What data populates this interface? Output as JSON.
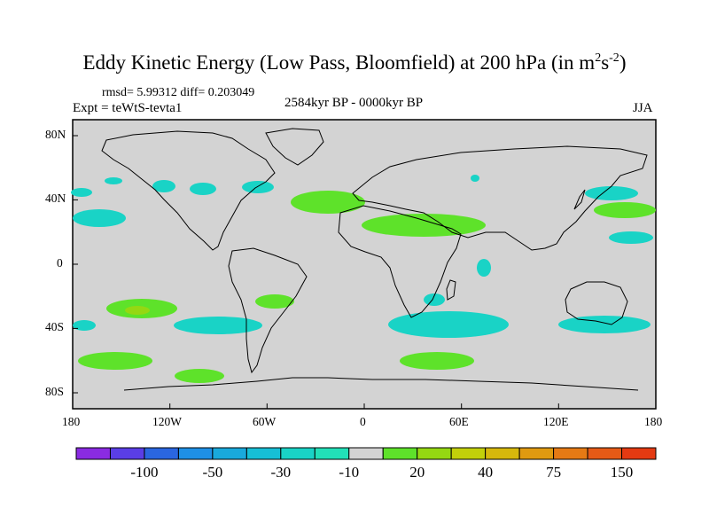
{
  "header": {
    "title_main": "Eddy Kinetic Energy (Low Pass, Bloomfield) at 200 hPa (in m",
    "units_exp1": "2",
    "units_s": "s",
    "units_exp2": "-2",
    "units_close": ")",
    "stats": "rmsd= 5.99312 diff= 0.203049",
    "experiment": "Expt = teWtS-tevta1",
    "period": "2584kyr BP - 0000kyr BP",
    "season": "JJA"
  },
  "map": {
    "lon_range": [
      -180,
      180
    ],
    "lat_range": [
      -90,
      90
    ],
    "background_color": "#d3d3d3",
    "lat_labels": [
      "80N",
      "40N",
      "0",
      "40S",
      "80S"
    ],
    "lon_labels": [
      "180",
      "120W",
      "60W",
      "0",
      "60E",
      "120E",
      "180"
    ]
  },
  "colorbar": {
    "colors": [
      "#8a2be2",
      "#5a3ee6",
      "#2a66e0",
      "#1e90e6",
      "#19a9dc",
      "#16bfd6",
      "#19d3c6",
      "#22e0b8",
      "#d3d3d3",
      "#5ee22a",
      "#95d812",
      "#c2d00a",
      "#d6b80c",
      "#e09a10",
      "#e67a14",
      "#e65a16",
      "#e43a12"
    ],
    "labels": [
      "-100",
      "-50",
      "-30",
      "-10",
      "20",
      "40",
      "75",
      "150"
    ],
    "label_boundaries": [
      2,
      4,
      6,
      8,
      10,
      12,
      14,
      16
    ]
  }
}
